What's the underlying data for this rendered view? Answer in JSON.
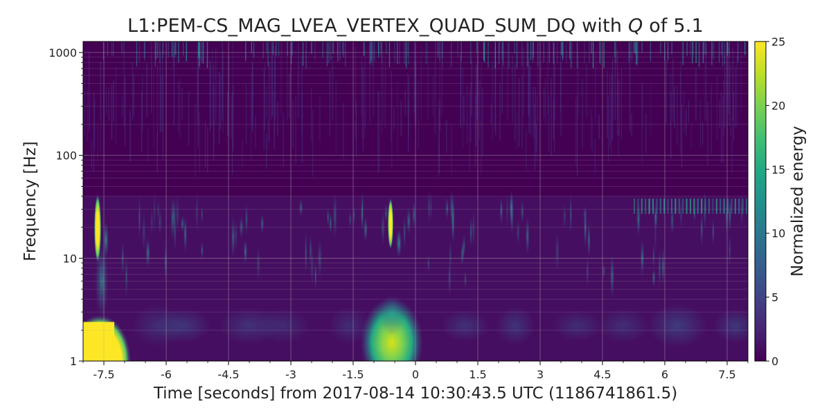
{
  "chart_data": {
    "type": "heatmap",
    "title_main": "L1:PEM-CS_MAG_LVEA_VERTEX_QUAD_SUM_DQ with ",
    "title_q": "Q",
    "title_tail": " of 5.1",
    "xlabel": "Time [seconds] from 2017-08-14 10:30:43.5 UTC (1186741861.5)",
    "ylabel": "Frequency [Hz]",
    "xlim": [
      -8,
      8
    ],
    "ylim": [
      1,
      1280
    ],
    "yscale": "log",
    "grid": true,
    "xticks": [
      -7.5,
      -6,
      -4.5,
      -3,
      -1.5,
      0,
      1.5,
      3,
      4.5,
      6,
      7.5
    ],
    "xtick_labels": [
      "-7.5",
      "-6",
      "-4.5",
      "-3",
      "-1.5",
      "0",
      "1.5",
      "3",
      "4.5",
      "6",
      "7.5"
    ],
    "yticks": [
      1,
      10,
      100,
      1000
    ],
    "ytick_labels": [
      "1",
      "10",
      "100",
      "1000"
    ],
    "colorbar": {
      "label": "Normalized energy",
      "range": [
        0,
        25
      ],
      "ticks": [
        0,
        5,
        10,
        15,
        20,
        25
      ],
      "tick_labels": [
        "0",
        "5",
        "10",
        "15",
        "20",
        "25"
      ],
      "colormap": "viridis"
    },
    "colors": {
      "background": "#440154",
      "low": "#481668",
      "mid": "#21918c",
      "high": "#fde725"
    },
    "features": [
      {
        "t_start": -8.0,
        "t_end": -7.0,
        "f_low": 1,
        "f_high": 2.8,
        "energy": 25
      },
      {
        "t_start": -7.7,
        "t_end": -7.6,
        "f_low": 10,
        "f_high": 38,
        "energy": 25
      },
      {
        "t_start": -0.9,
        "t_end": -0.3,
        "f_low": 1.1,
        "f_high": 2.7,
        "energy": 22
      },
      {
        "t_start": -0.65,
        "t_end": -0.55,
        "f_low": 13,
        "f_high": 36,
        "energy": 25
      },
      {
        "t_start": 5.2,
        "t_end": 8.0,
        "f_low": 27,
        "f_high": 38,
        "energy": 8
      }
    ]
  }
}
